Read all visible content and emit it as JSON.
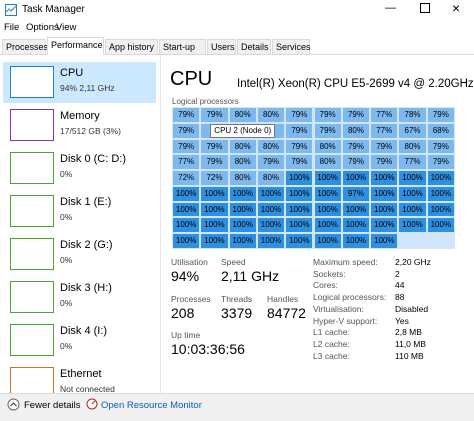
{
  "window": {
    "title": "Task Manager",
    "menu": [
      "File",
      "Options",
      "View"
    ],
    "tabs": [
      "Processes",
      "Performance",
      "App history",
      "Start-up",
      "Users",
      "Details",
      "Services"
    ],
    "active_tab": 1
  },
  "sidebar": [
    {
      "name": "CPU",
      "detail": "94% 2,11 GHz",
      "color": "#1a7fd4",
      "selected": true
    },
    {
      "name": "Memory",
      "detail": "17/512 GB (3%)",
      "color": "#8b2fa8"
    },
    {
      "name": "Disk 0 (C: D:)",
      "detail": "0%",
      "color": "#4da32f"
    },
    {
      "name": "Disk 1 (E:)",
      "detail": "0%",
      "color": "#4da32f"
    },
    {
      "name": "Disk 2 (G:)",
      "detail": "0%",
      "color": "#4da32f"
    },
    {
      "name": "Disk 3 (H:)",
      "detail": "0%",
      "color": "#4da32f"
    },
    {
      "name": "Disk 4 (I:)",
      "detail": "0%",
      "color": "#4da32f"
    },
    {
      "name": "Ethernet",
      "detail": "Not connected",
      "color": "#c4752a"
    }
  ],
  "cpu": {
    "title": "CPU",
    "model": "Intel(R) Xeon(R) CPU E5-2699 v4 @ 2.20GHz",
    "grid_label": "Logical processors",
    "tooltip": "CPU 2 (Node 0)",
    "cells": [
      [
        "79%",
        "79%",
        "80%",
        "80%",
        "79%",
        "79%",
        "79%",
        "77%",
        "78%",
        "79%"
      ],
      [
        "79%",
        null,
        null,
        null,
        "79%",
        "79%",
        "80%",
        "77%",
        "67%",
        "68%"
      ],
      [
        "79%",
        "79%",
        "80%",
        "80%",
        "79%",
        "80%",
        "79%",
        "79%",
        "80%",
        "79%"
      ],
      [
        "77%",
        "79%",
        "80%",
        "79%",
        "79%",
        "80%",
        "79%",
        "79%",
        "77%",
        "79%"
      ],
      [
        "72%",
        "72%",
        "80%",
        "80%",
        "100%",
        "100%",
        "100%",
        "100%",
        "100%",
        "100%"
      ],
      [
        "100%",
        "100%",
        "100%",
        "100%",
        "100%",
        "100%",
        "97%",
        "100%",
        "100%",
        "100%"
      ],
      [
        "100%",
        "100%",
        "100%",
        "100%",
        "100%",
        "100%",
        "100%",
        "100%",
        "100%",
        "100%"
      ],
      [
        "100%",
        "100%",
        "100%",
        "100%",
        "100%",
        "100%",
        "100%",
        "100%",
        "100%",
        "100%"
      ],
      [
        "100%",
        "100%",
        "100%",
        "100%",
        "100%",
        "100%",
        "100%",
        "100%"
      ]
    ],
    "stats": [
      [
        {
          "label": "Utilisation",
          "value": "94%"
        },
        {
          "label": "Speed",
          "value": "2,11 GHz"
        }
      ],
      [
        {
          "label": "Processes",
          "value": "208"
        },
        {
          "label": "Threads",
          "value": "3379"
        },
        {
          "label": "Handles",
          "value": "84772"
        }
      ],
      [
        {
          "label": "Up time",
          "value": "10:03:36:56"
        }
      ]
    ],
    "info": [
      {
        "label": "Maximum speed:",
        "value": "2,20 GHz"
      },
      {
        "label": "Sockets:",
        "value": "2"
      },
      {
        "label": "Cores:",
        "value": "44"
      },
      {
        "label": "Logical processors:",
        "value": "88"
      },
      {
        "label": "Virtualisation:",
        "value": "Disabled"
      },
      {
        "label": "Hyper-V support:",
        "value": "Yes"
      },
      {
        "label": "L1 cache:",
        "value": "2,8 MB"
      },
      {
        "label": "L2 cache:",
        "value": "11,0 MB"
      },
      {
        "label": "L3 cache:",
        "value": "110 MB"
      }
    ]
  },
  "footer": {
    "fewer": "Fewer details",
    "monitor": "Open Resource Monitor"
  }
}
